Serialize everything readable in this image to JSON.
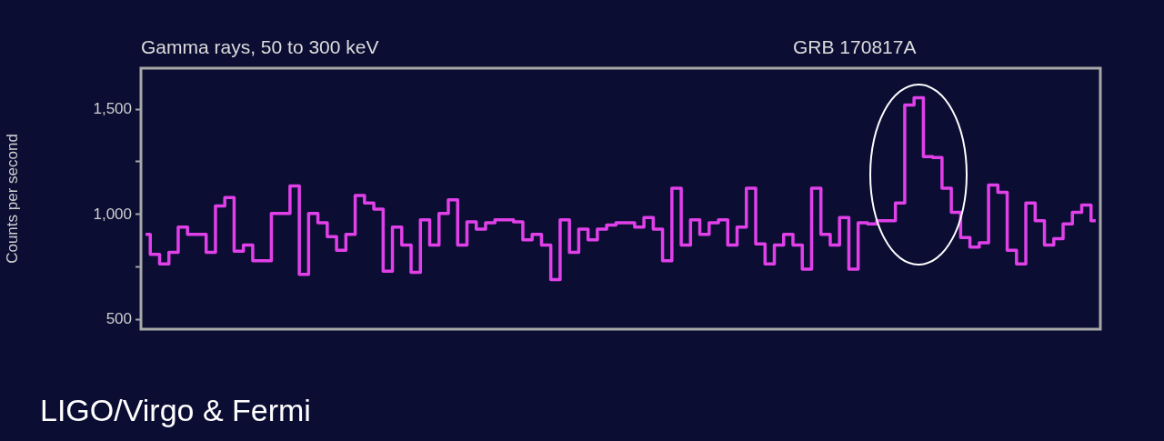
{
  "chart_data": {
    "type": "step",
    "title": "Gamma rays, 50 to 300 keV",
    "ylabel": "Counts per second",
    "annotations": [
      "GRB 170817A",
      "LIGO/Virgo & Fermi"
    ],
    "categories": [
      null,
      null,
      null,
      null,
      null,
      null,
      null,
      null,
      null,
      null,
      null,
      null,
      null,
      null,
      null,
      null,
      null,
      null,
      null,
      null,
      null,
      null,
      null,
      null,
      null,
      null,
      null,
      null,
      null,
      null,
      null,
      null,
      null,
      null,
      null,
      null,
      null,
      null,
      null,
      null,
      null,
      null,
      null,
      null,
      null,
      null,
      null,
      null,
      null,
      null,
      null,
      null,
      null,
      null,
      null,
      null,
      null,
      null,
      null,
      null,
      null,
      null,
      null,
      null,
      null,
      null,
      null,
      null,
      null,
      null,
      null,
      null,
      null,
      null,
      null,
      null,
      null,
      null,
      null,
      null,
      null,
      null,
      null,
      null,
      null,
      null,
      null,
      null,
      null,
      null,
      null,
      null,
      null,
      null,
      null,
      null,
      null,
      null,
      null,
      null,
      null,
      null,
      null
    ],
    "series": [
      {
        "color": "#e040e8",
        "values": [
          905,
          810,
          765,
          820,
          940,
          905,
          905,
          820,
          1040,
          1080,
          825,
          855,
          780,
          780,
          1005,
          1005,
          1135,
          715,
          1005,
          960,
          895,
          830,
          905,
          1090,
          1055,
          1025,
          730,
          940,
          855,
          725,
          975,
          855,
          1005,
          1070,
          855,
          965,
          930,
          960,
          975,
          975,
          965,
          880,
          905,
          855,
          690,
          975,
          820,
          930,
          880,
          930,
          950,
          960,
          960,
          940,
          985,
          930,
          780,
          1125,
          855,
          975,
          905,
          960,
          975,
          855,
          940,
          1125,
          860,
          765,
          855,
          905,
          855,
          740,
          1125,
          905,
          855,
          985,
          740,
          960,
          955,
          970,
          970,
          1055,
          1520,
          1555,
          1275,
          1270,
          1125,
          1010,
          890,
          845,
          865,
          1140,
          1105,
          830,
          765,
          1055,
          970,
          855,
          885,
          955,
          1010,
          1045,
          970
        ]
      }
    ],
    "ylim": [
      455,
      1695
    ],
    "yticks": [
      500,
      {
        "value": 750,
        "label": null
      },
      {
        "value": 1000,
        "label": "1,000"
      },
      {
        "value": 1250,
        "label": null
      },
      {
        "value": 1500,
        "label": "1,500"
      }
    ],
    "tick_labels": "y",
    "grid": false,
    "legend": false,
    "marker": "none",
    "line_style": "solid"
  }
}
